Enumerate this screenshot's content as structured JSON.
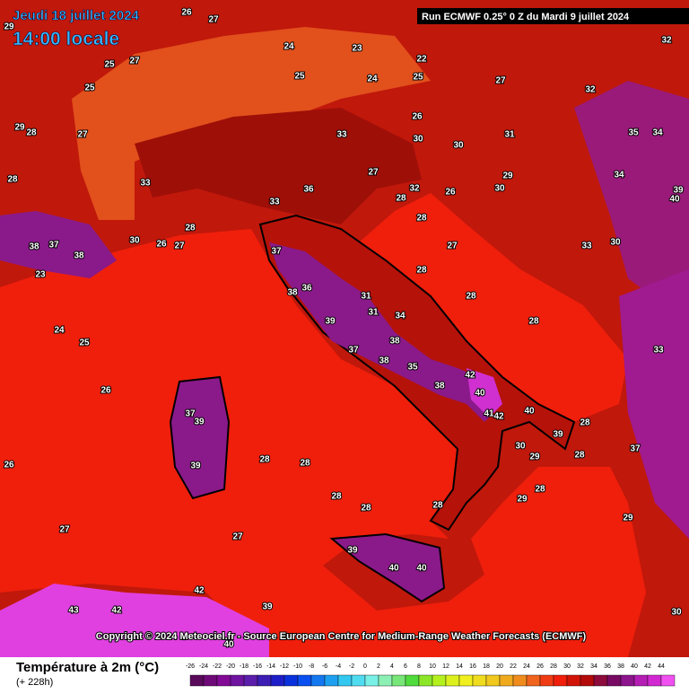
{
  "header": {
    "date": "Jeudi 18 juillet 2024",
    "time": "14:00 locale",
    "run": "Run ECMWF 0.25° 0 Z du Mardi 9 juillet 2024"
  },
  "map": {
    "labels": [
      26,
      27,
      29,
      25,
      27,
      25,
      29,
      28,
      27,
      28,
      33,
      28,
      30,
      26,
      27,
      38,
      37,
      38,
      23,
      24,
      25,
      26,
      26,
      27,
      27,
      28,
      28,
      28,
      28,
      28,
      29,
      28,
      28,
      28,
      28,
      28,
      28,
      28,
      28,
      33,
      32,
      31,
      30,
      29,
      30,
      33,
      30,
      32,
      32,
      27,
      25,
      22,
      24,
      23,
      36,
      37,
      38,
      36,
      39,
      37,
      38,
      35,
      38,
      42,
      40,
      41,
      42,
      40,
      39,
      37,
      39,
      39,
      38,
      34,
      40,
      40,
      39,
      42,
      43,
      42,
      40,
      39,
      30,
      29,
      37,
      33,
      40,
      39,
      34,
      35,
      34,
      30,
      29,
      26,
      27,
      31,
      31,
      25,
      24,
      26,
      30,
      33,
      27
    ]
  },
  "copyright": "Copyright © 2024 Meteociel.fr - Source European Centre for Medium-Range Weather Forecasts (ECMWF)",
  "legend": {
    "title": "Température à 2m (°C)",
    "subtitle": "(+ 228h)",
    "ticks": [
      -26,
      -24,
      -22,
      -20,
      -18,
      -16,
      -14,
      -12,
      -10,
      -8,
      -6,
      -4,
      -2,
      0,
      2,
      4,
      6,
      8,
      10,
      12,
      14,
      16,
      18,
      20,
      22,
      24,
      26,
      28,
      30,
      32,
      34,
      36,
      38,
      40,
      42,
      44
    ],
    "colors": [
      "#5a0a5a",
      "#6e0a78",
      "#820a96",
      "#6e14a0",
      "#5a1eaa",
      "#3c1eb4",
      "#1e1ec8",
      "#0a32dc",
      "#0a50f0",
      "#1478f0",
      "#1ea0f0",
      "#32c8f0",
      "#50dcf0",
      "#78f0e6",
      "#8cf0b4",
      "#78e678",
      "#50dc3c",
      "#8ce628",
      "#b4f01e",
      "#dcf01e",
      "#f0f01e",
      "#f0dc1e",
      "#f0c81e",
      "#f0aa1e",
      "#f08c1e",
      "#f0641e",
      "#f03c14",
      "#f01e0a",
      "#d21408",
      "#b40a0a",
      "#8c0a3c",
      "#780a64",
      "#8c148c",
      "#b41eb4",
      "#d228d2",
      "#f050f0"
    ]
  }
}
